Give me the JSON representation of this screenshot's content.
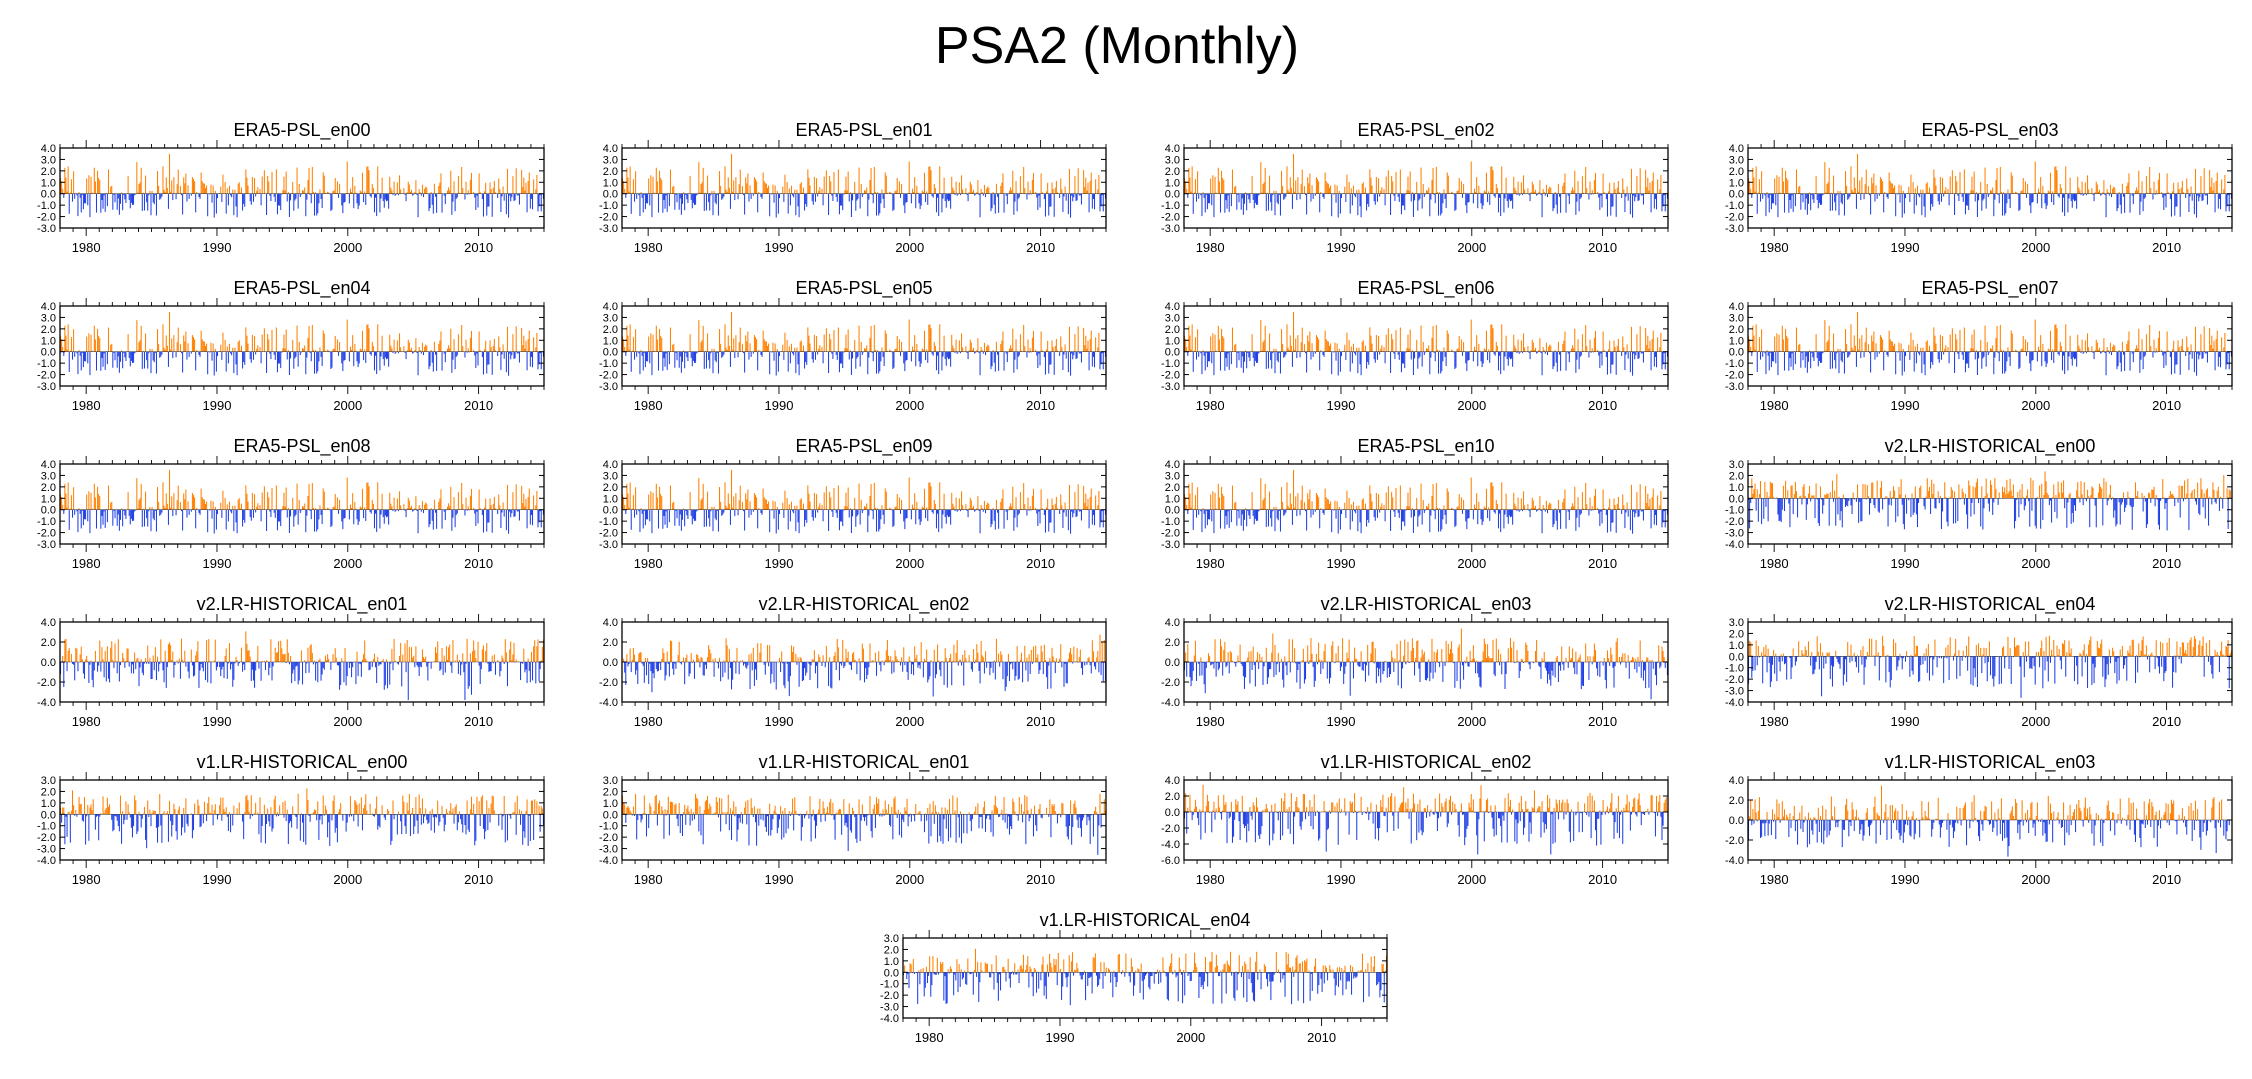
{
  "figure_title": "PSA2 (Monthly)",
  "colors": {
    "positive": "#ff8000",
    "negative": "#1e3fe6",
    "frame": "#000000"
  },
  "chart_data": [
    {
      "title": "ERA5-PSL_en00",
      "type": "bar",
      "yticks": [
        "4.0",
        "3.0",
        "2.0",
        "1.0",
        "0.0",
        "-1.0",
        "-2.0",
        "-3.0"
      ],
      "ylim": [
        -3,
        4
      ],
      "xticks": [
        "1980",
        "1990",
        "2000",
        "2010"
      ],
      "xlim": [
        1978,
        2015
      ],
      "seed": 3
    },
    {
      "title": "ERA5-PSL_en01",
      "type": "bar",
      "yticks": [
        "4.0",
        "3.0",
        "2.0",
        "1.0",
        "0.0",
        "-1.0",
        "-2.0",
        "-3.0"
      ],
      "ylim": [
        -3,
        4
      ],
      "xticks": [
        "1980",
        "1990",
        "2000",
        "2010"
      ],
      "xlim": [
        1978,
        2015
      ],
      "seed": 3
    },
    {
      "title": "ERA5-PSL_en02",
      "type": "bar",
      "yticks": [
        "4.0",
        "3.0",
        "2.0",
        "1.0",
        "0.0",
        "-1.0",
        "-2.0",
        "-3.0"
      ],
      "ylim": [
        -3,
        4
      ],
      "xticks": [
        "1980",
        "1990",
        "2000",
        "2010"
      ],
      "xlim": [
        1978,
        2015
      ],
      "seed": 3
    },
    {
      "title": "ERA5-PSL_en03",
      "type": "bar",
      "yticks": [
        "4.0",
        "3.0",
        "2.0",
        "1.0",
        "0.0",
        "-1.0",
        "-2.0",
        "-3.0"
      ],
      "ylim": [
        -3,
        4
      ],
      "xticks": [
        "1980",
        "1990",
        "2000",
        "2010"
      ],
      "xlim": [
        1978,
        2015
      ],
      "seed": 3
    },
    {
      "title": "ERA5-PSL_en04",
      "type": "bar",
      "yticks": [
        "4.0",
        "3.0",
        "2.0",
        "1.0",
        "0.0",
        "-1.0",
        "-2.0",
        "-3.0"
      ],
      "ylim": [
        -3,
        4
      ],
      "xticks": [
        "1980",
        "1990",
        "2000",
        "2010"
      ],
      "xlim": [
        1978,
        2015
      ],
      "seed": 3
    },
    {
      "title": "ERA5-PSL_en05",
      "type": "bar",
      "yticks": [
        "4.0",
        "3.0",
        "2.0",
        "1.0",
        "0.0",
        "-1.0",
        "-2.0",
        "-3.0"
      ],
      "ylim": [
        -3,
        4
      ],
      "xticks": [
        "1980",
        "1990",
        "2000",
        "2010"
      ],
      "xlim": [
        1978,
        2015
      ],
      "seed": 3
    },
    {
      "title": "ERA5-PSL_en06",
      "type": "bar",
      "yticks": [
        "4.0",
        "3.0",
        "2.0",
        "1.0",
        "0.0",
        "-1.0",
        "-2.0",
        "-3.0"
      ],
      "ylim": [
        -3,
        4
      ],
      "xticks": [
        "1980",
        "1990",
        "2000",
        "2010"
      ],
      "xlim": [
        1978,
        2015
      ],
      "seed": 3
    },
    {
      "title": "ERA5-PSL_en07",
      "type": "bar",
      "yticks": [
        "4.0",
        "3.0",
        "2.0",
        "1.0",
        "0.0",
        "-1.0",
        "-2.0",
        "-3.0"
      ],
      "ylim": [
        -3,
        4
      ],
      "xticks": [
        "1980",
        "1990",
        "2000",
        "2010"
      ],
      "xlim": [
        1978,
        2015
      ],
      "seed": 3
    },
    {
      "title": "ERA5-PSL_en08",
      "type": "bar",
      "yticks": [
        "4.0",
        "3.0",
        "2.0",
        "1.0",
        "0.0",
        "-1.0",
        "-2.0",
        "-3.0"
      ],
      "ylim": [
        -3,
        4
      ],
      "xticks": [
        "1980",
        "1990",
        "2000",
        "2010"
      ],
      "xlim": [
        1978,
        2015
      ],
      "seed": 3
    },
    {
      "title": "ERA5-PSL_en09",
      "type": "bar",
      "yticks": [
        "4.0",
        "3.0",
        "2.0",
        "1.0",
        "0.0",
        "-1.0",
        "-2.0",
        "-3.0"
      ],
      "ylim": [
        -3,
        4
      ],
      "xticks": [
        "1980",
        "1990",
        "2000",
        "2010"
      ],
      "xlim": [
        1978,
        2015
      ],
      "seed": 3
    },
    {
      "title": "ERA5-PSL_en10",
      "type": "bar",
      "yticks": [
        "4.0",
        "3.0",
        "2.0",
        "1.0",
        "0.0",
        "-1.0",
        "-2.0",
        "-3.0"
      ],
      "ylim": [
        -3,
        4
      ],
      "xticks": [
        "1980",
        "1990",
        "2000",
        "2010"
      ],
      "xlim": [
        1978,
        2015
      ],
      "seed": 3
    },
    {
      "title": "v2.LR-HISTORICAL_en00",
      "type": "bar",
      "yticks": [
        "3.0",
        "2.0",
        "1.0",
        "0.0",
        "-1.0",
        "-2.0",
        "-3.0",
        "-4.0"
      ],
      "ylim": [
        -4,
        3
      ],
      "xticks": [
        "1980",
        "1990",
        "2000",
        "2010"
      ],
      "xlim": [
        1978,
        2015
      ],
      "seed": 11
    },
    {
      "title": "v2.LR-HISTORICAL_en01",
      "type": "bar",
      "yticks": [
        "4.0",
        "2.0",
        "0.0",
        "-2.0",
        "-4.0"
      ],
      "ylim": [
        -4,
        4
      ],
      "xticks": [
        "1980",
        "1990",
        "2000",
        "2010"
      ],
      "xlim": [
        1978,
        2015
      ],
      "seed": 12
    },
    {
      "title": "v2.LR-HISTORICAL_en02",
      "type": "bar",
      "yticks": [
        "4.0",
        "2.0",
        "0.0",
        "-2.0",
        "-4.0"
      ],
      "ylim": [
        -4,
        4
      ],
      "xticks": [
        "1980",
        "1990",
        "2000",
        "2010"
      ],
      "xlim": [
        1978,
        2015
      ],
      "seed": 13
    },
    {
      "title": "v2.LR-HISTORICAL_en03",
      "type": "bar",
      "yticks": [
        "4.0",
        "2.0",
        "0.0",
        "-2.0",
        "-4.0"
      ],
      "ylim": [
        -4,
        4
      ],
      "xticks": [
        "1980",
        "1990",
        "2000",
        "2010"
      ],
      "xlim": [
        1978,
        2015
      ],
      "seed": 14
    },
    {
      "title": "v2.LR-HISTORICAL_en04",
      "type": "bar",
      "yticks": [
        "3.0",
        "2.0",
        "1.0",
        "0.0",
        "-1.0",
        "-2.0",
        "-3.0",
        "-4.0"
      ],
      "ylim": [
        -4,
        3
      ],
      "xticks": [
        "1980",
        "1990",
        "2000",
        "2010"
      ],
      "xlim": [
        1978,
        2015
      ],
      "seed": 15
    },
    {
      "title": "v1.LR-HISTORICAL_en00",
      "type": "bar",
      "yticks": [
        "3.0",
        "2.0",
        "1.0",
        "0.0",
        "-1.0",
        "-2.0",
        "-3.0",
        "-4.0"
      ],
      "ylim": [
        -4,
        3
      ],
      "xticks": [
        "1980",
        "1990",
        "2000",
        "2010"
      ],
      "xlim": [
        1978,
        2015
      ],
      "seed": 21
    },
    {
      "title": "v1.LR-HISTORICAL_en01",
      "type": "bar",
      "yticks": [
        "3.0",
        "2.0",
        "1.0",
        "0.0",
        "-1.0",
        "-2.0",
        "-3.0",
        "-4.0"
      ],
      "ylim": [
        -4,
        3
      ],
      "xticks": [
        "1980",
        "1990",
        "2000",
        "2010"
      ],
      "xlim": [
        1978,
        2015
      ],
      "seed": 22
    },
    {
      "title": "v1.LR-HISTORICAL_en02",
      "type": "bar",
      "yticks": [
        "4.0",
        "2.0",
        "0.0",
        "-2.0",
        "-4.0",
        "-6.0"
      ],
      "ylim": [
        -6,
        4
      ],
      "xticks": [
        "1980",
        "1990",
        "2000",
        "2010"
      ],
      "xlim": [
        1978,
        2015
      ],
      "seed": 23
    },
    {
      "title": "v1.LR-HISTORICAL_en03",
      "type": "bar",
      "yticks": [
        "4.0",
        "2.0",
        "0.0",
        "-2.0",
        "-4.0"
      ],
      "ylim": [
        -4,
        4
      ],
      "xticks": [
        "1980",
        "1990",
        "2000",
        "2010"
      ],
      "xlim": [
        1978,
        2015
      ],
      "seed": 24
    },
    {
      "title": "v1.LR-HISTORICAL_en04",
      "type": "bar",
      "yticks": [
        "3.0",
        "2.0",
        "1.0",
        "0.0",
        "-1.0",
        "-2.0",
        "-3.0",
        "-4.0"
      ],
      "ylim": [
        -4,
        3
      ],
      "xticks": [
        "1980",
        "1990",
        "2000",
        "2010"
      ],
      "xlim": [
        1978,
        2015
      ],
      "seed": 25
    }
  ]
}
